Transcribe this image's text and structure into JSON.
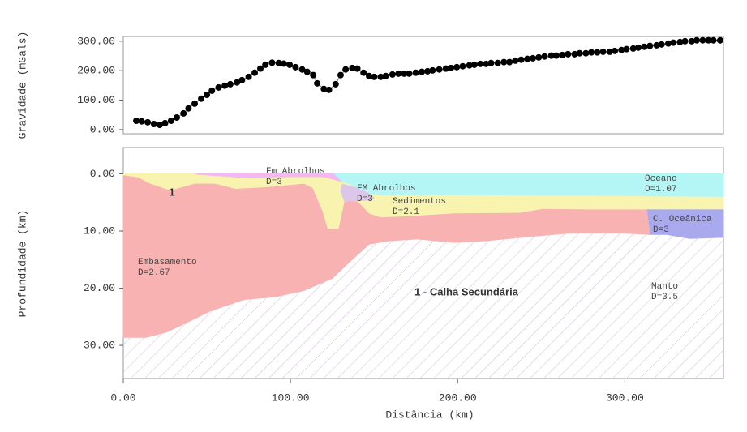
{
  "chart_data": [
    {
      "type": "line",
      "ylabel": "Gravidade (mGals)",
      "xlim": [
        0,
        359
      ],
      "ylim": [
        -14,
        316
      ],
      "yticks": [
        {
          "value": 0,
          "label": "0.00"
        },
        {
          "value": 100,
          "label": "100.00"
        },
        {
          "value": 200,
          "label": "200.00"
        },
        {
          "value": 300,
          "label": "300.00"
        }
      ],
      "x": [
        7.8,
        11,
        14.6,
        18.4,
        21.8,
        25,
        28.6,
        32,
        36,
        39,
        42.7,
        46.6,
        50,
        53,
        57,
        60.7,
        64,
        68,
        71,
        75,
        78.6,
        82,
        85,
        89,
        93,
        96,
        99.5,
        103,
        107,
        110,
        113.6,
        116,
        120,
        123,
        127,
        130,
        133,
        137,
        140,
        143.7,
        147,
        150,
        154,
        157,
        161,
        164.6,
        168,
        171,
        175,
        178.6,
        182,
        185,
        189,
        193,
        196,
        199.5,
        203,
        207,
        210,
        213.6,
        217,
        220,
        224,
        227.7,
        231,
        234.5,
        238,
        241.7,
        245,
        248.5,
        252,
        256,
        259,
        262.6,
        266,
        270,
        273,
        276.7,
        280,
        283.5,
        287,
        291,
        294,
        298,
        301,
        305,
        308,
        311.6,
        315,
        319,
        322,
        326,
        329,
        333,
        336,
        340,
        343,
        346.6,
        350,
        353,
        357
      ],
      "series": [
        {
          "color": "#000000",
          "values": [
            30,
            28,
            25,
            19,
            16,
            22,
            30,
            41,
            55,
            72,
            88,
            105,
            118,
            132,
            143,
            149,
            154,
            160,
            168,
            179,
            193,
            207,
            220,
            227,
            226,
            224,
            220,
            212,
            204,
            196,
            185,
            157,
            138,
            135,
            154,
            185,
            204,
            209,
            207,
            193,
            182,
            179,
            179,
            182,
            187,
            190,
            190,
            190,
            193,
            196,
            198,
            201,
            204,
            207,
            209,
            212,
            215,
            218,
            220,
            223,
            223,
            226,
            226,
            229,
            229,
            234,
            237,
            240,
            242,
            245,
            248,
            251,
            251,
            253,
            256,
            256,
            259,
            259,
            262,
            262,
            264,
            264,
            267,
            270,
            273,
            275,
            278,
            281,
            284,
            286,
            289,
            292,
            295,
            297,
            300,
            300,
            303,
            303,
            303,
            303,
            303
          ]
        }
      ],
      "marker": true
    },
    {
      "type": "section",
      "xlabel": "Distância (km)",
      "ylabel": "Profundidade (km)",
      "xlim": [
        0,
        359
      ],
      "ylim": [
        -4.6,
        35.8
      ],
      "invert_y": true,
      "xticks": [
        {
          "value": 0,
          "label": "0.00"
        },
        {
          "value": 100,
          "label": "100.00"
        },
        {
          "value": 200,
          "label": "200.00"
        },
        {
          "value": 300,
          "label": "300.00"
        }
      ],
      "yticks": [
        {
          "value": 0,
          "label": "0.00"
        },
        {
          "value": 10,
          "label": "10.00"
        },
        {
          "value": 20,
          "label": "20.00"
        },
        {
          "value": 30,
          "label": "30.00"
        }
      ],
      "layers": [
        {
          "name": "Manto",
          "density": "D=3.5",
          "color": "#cdbbd6",
          "hatch": true,
          "x": [
            0,
            359,
            359,
            0
          ],
          "y": [
            0,
            0,
            35.8,
            35.8
          ]
        },
        {
          "name": "Oceano",
          "density": "D=1.07",
          "color": "#b4f6f6",
          "x": [
            125,
            359,
            359,
            125
          ],
          "y": [
            0,
            0,
            6.3,
            6.3
          ]
        },
        {
          "name": "Sedimentos",
          "density": "D=2.1",
          "color": "#f8f4b0",
          "x": [
            0,
            125,
            130,
            140,
            147,
            154,
            198,
            276,
            359,
            359,
            0
          ],
          "y": [
            0,
            0,
            1.3,
            2.5,
            3.5,
            3.8,
            3.8,
            3.9,
            4.1,
            10,
            10
          ]
        },
        {
          "name": "C. Oceânica",
          "density": "D=3",
          "color": "#a9a9ee",
          "x": [
            313,
            359,
            359,
            339,
            325,
            314
          ],
          "y": [
            6.3,
            6.3,
            11.1,
            11.3,
            10.6,
            10.6
          ]
        },
        {
          "name": "Fm Abrolhos",
          "density": "D=3",
          "color": "#f2b8f0",
          "x": [
            43,
            126,
            130,
            120,
            100,
            70,
            45
          ],
          "y": [
            0,
            0,
            1.3,
            0.5,
            0.5,
            0.6,
            0.1
          ]
        },
        {
          "name": "FM Abrolhos",
          "density": "D=3",
          "color": "#dcc6ea",
          "x": [
            131,
            140,
            147,
            150,
            148,
            140,
            132.5,
            130
          ],
          "y": [
            1.8,
            2.5,
            3.5,
            4.2,
            4.6,
            4.7,
            4.9,
            3
          ]
        },
        {
          "name": "Embasamento",
          "density": "D=2.67",
          "color": "#f8b2b2",
          "x": [
            0,
            8.7,
            16,
            28,
            42.7,
            55,
            67,
            86,
            108,
            113,
            119,
            122,
            129,
            132.5,
            140,
            147,
            154,
            169,
            198,
            237,
            251,
            276,
            313,
            315,
            300,
            266,
            242,
            217,
            198,
            176,
            159,
            147,
            135,
            125,
            108,
            91,
            72,
            52,
            38,
            25.7,
            13.6,
            0
          ],
          "y": [
            0.3,
            0.7,
            1.8,
            3,
            1.8,
            1.8,
            2.7,
            2.4,
            1.8,
            2.5,
            6.6,
            9.7,
            9.7,
            4.9,
            4.9,
            7,
            7.7,
            7.5,
            7,
            6.9,
            6.2,
            6.3,
            6.3,
            10.6,
            10.4,
            10.4,
            11,
            11.7,
            12,
            11.4,
            11.7,
            12.3,
            15.5,
            18.3,
            20.4,
            21.5,
            22,
            24,
            26,
            27.7,
            28.6,
            28.6
          ]
        }
      ],
      "annotations": [
        "1",
        "1 - Calha Secundária"
      ]
    }
  ]
}
